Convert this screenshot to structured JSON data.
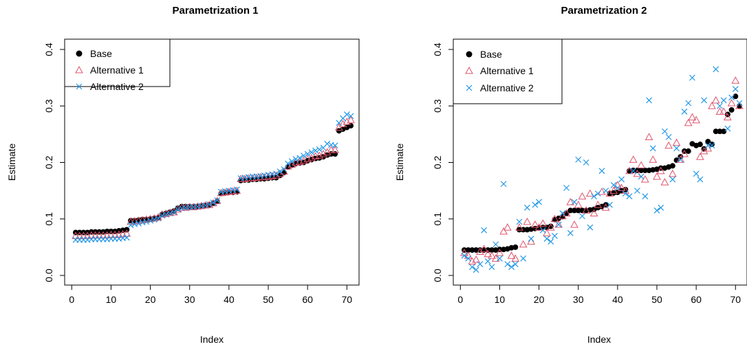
{
  "chart_data": [
    {
      "type": "scatter",
      "title": "Parametrization 1",
      "xlabel": "Index",
      "ylabel": "Estimate",
      "xlim": [
        1,
        71
      ],
      "ylim": [
        0.0,
        0.4
      ],
      "xticks": [
        "0",
        "10",
        "20",
        "30",
        "40",
        "50",
        "60",
        "70"
      ],
      "yticks": [
        "0.0",
        "0.1",
        "0.2",
        "0.3",
        "0.4"
      ],
      "legend": {
        "position": "top-left",
        "entries": [
          "Base",
          "Alternative 1",
          "Alternative 2"
        ]
      },
      "series": [
        {
          "name": "Base",
          "marker": "filled-circle",
          "color": "#000000",
          "x": [
            1,
            2,
            3,
            4,
            5,
            6,
            7,
            8,
            9,
            10,
            11,
            12,
            13,
            14,
            15,
            16,
            17,
            18,
            19,
            20,
            21,
            22,
            23,
            24,
            25,
            26,
            27,
            28,
            29,
            30,
            31,
            32,
            33,
            34,
            35,
            36,
            37,
            38,
            39,
            40,
            41,
            42,
            43,
            44,
            45,
            46,
            47,
            48,
            49,
            50,
            51,
            52,
            53,
            54,
            55,
            56,
            57,
            58,
            59,
            60,
            61,
            62,
            63,
            64,
            65,
            66,
            67,
            68,
            69,
            70,
            71
          ],
          "values": [
            0.076,
            0.076,
            0.076,
            0.076,
            0.077,
            0.077,
            0.077,
            0.077,
            0.078,
            0.078,
            0.078,
            0.079,
            0.08,
            0.081,
            0.097,
            0.097,
            0.098,
            0.099,
            0.099,
            0.1,
            0.101,
            0.102,
            0.108,
            0.11,
            0.112,
            0.114,
            0.119,
            0.122,
            0.122,
            0.122,
            0.122,
            0.122,
            0.123,
            0.124,
            0.125,
            0.128,
            0.131,
            0.145,
            0.146,
            0.147,
            0.147,
            0.148,
            0.168,
            0.169,
            0.169,
            0.17,
            0.17,
            0.171,
            0.171,
            0.172,
            0.173,
            0.173,
            0.177,
            0.182,
            0.192,
            0.195,
            0.198,
            0.199,
            0.2,
            0.203,
            0.205,
            0.207,
            0.208,
            0.21,
            0.213,
            0.215,
            0.215,
            0.256,
            0.259,
            0.262,
            0.265
          ]
        },
        {
          "name": "Alternative 1",
          "marker": "open-triangle",
          "color": "#DF536B",
          "x": [
            1,
            2,
            3,
            4,
            5,
            6,
            7,
            8,
            9,
            10,
            11,
            12,
            13,
            14,
            15,
            16,
            17,
            18,
            19,
            20,
            21,
            22,
            23,
            24,
            25,
            26,
            27,
            28,
            29,
            30,
            31,
            32,
            33,
            34,
            35,
            36,
            37,
            38,
            39,
            40,
            41,
            42,
            43,
            44,
            45,
            46,
            47,
            48,
            49,
            50,
            51,
            52,
            53,
            54,
            55,
            56,
            57,
            58,
            59,
            60,
            61,
            62,
            63,
            64,
            65,
            66,
            67,
            68,
            69,
            70,
            71
          ],
          "values": [
            0.07,
            0.07,
            0.07,
            0.07,
            0.071,
            0.071,
            0.071,
            0.071,
            0.071,
            0.072,
            0.072,
            0.072,
            0.073,
            0.074,
            0.095,
            0.096,
            0.097,
            0.098,
            0.099,
            0.1,
            0.101,
            0.103,
            0.108,
            0.109,
            0.111,
            0.112,
            0.117,
            0.12,
            0.12,
            0.121,
            0.121,
            0.122,
            0.123,
            0.124,
            0.125,
            0.128,
            0.132,
            0.146,
            0.147,
            0.148,
            0.149,
            0.15,
            0.171,
            0.171,
            0.172,
            0.172,
            0.173,
            0.174,
            0.174,
            0.175,
            0.176,
            0.177,
            0.18,
            0.184,
            0.193,
            0.196,
            0.2,
            0.201,
            0.203,
            0.206,
            0.208,
            0.211,
            0.212,
            0.215,
            0.218,
            0.222,
            0.222,
            0.262,
            0.268,
            0.272,
            0.275
          ]
        },
        {
          "name": "Alternative 2",
          "marker": "cross",
          "color": "#2297E6",
          "x": [
            1,
            2,
            3,
            4,
            5,
            6,
            7,
            8,
            9,
            10,
            11,
            12,
            13,
            14,
            15,
            16,
            17,
            18,
            19,
            20,
            21,
            22,
            23,
            24,
            25,
            26,
            27,
            28,
            29,
            30,
            31,
            32,
            33,
            34,
            35,
            36,
            37,
            38,
            39,
            40,
            41,
            42,
            43,
            44,
            45,
            46,
            47,
            48,
            49,
            50,
            51,
            52,
            53,
            54,
            55,
            56,
            57,
            58,
            59,
            60,
            61,
            62,
            63,
            64,
            65,
            66,
            67,
            68,
            69,
            70,
            71
          ],
          "values": [
            0.063,
            0.063,
            0.063,
            0.063,
            0.064,
            0.064,
            0.064,
            0.064,
            0.064,
            0.065,
            0.065,
            0.065,
            0.066,
            0.067,
            0.089,
            0.091,
            0.092,
            0.094,
            0.095,
            0.097,
            0.099,
            0.101,
            0.106,
            0.108,
            0.11,
            0.112,
            0.117,
            0.119,
            0.12,
            0.121,
            0.121,
            0.122,
            0.123,
            0.124,
            0.126,
            0.129,
            0.133,
            0.148,
            0.149,
            0.15,
            0.151,
            0.152,
            0.172,
            0.173,
            0.174,
            0.175,
            0.175,
            0.176,
            0.177,
            0.178,
            0.179,
            0.18,
            0.184,
            0.188,
            0.198,
            0.202,
            0.206,
            0.208,
            0.212,
            0.215,
            0.218,
            0.221,
            0.223,
            0.226,
            0.233,
            0.231,
            0.23,
            0.27,
            0.278,
            0.285,
            0.282
          ]
        }
      ]
    },
    {
      "type": "scatter",
      "title": "Parametrization 2",
      "xlabel": "Index",
      "ylabel": "Estimate",
      "xlim": [
        1,
        71
      ],
      "ylim": [
        0.0,
        0.4
      ],
      "xticks": [
        "0",
        "10",
        "20",
        "30",
        "40",
        "50",
        "60",
        "70"
      ],
      "yticks": [
        "0.0",
        "0.1",
        "0.2",
        "0.3",
        "0.4"
      ],
      "legend": {
        "position": "top-left",
        "entries": [
          "Base",
          "Alternative 1",
          "Alternative 2"
        ]
      },
      "series": [
        {
          "name": "Base",
          "marker": "filled-circle",
          "color": "#000000",
          "x": [
            1,
            2,
            3,
            4,
            5,
            6,
            7,
            8,
            9,
            10,
            11,
            12,
            13,
            14,
            15,
            16,
            17,
            18,
            19,
            20,
            21,
            22,
            23,
            24,
            25,
            26,
            27,
            28,
            29,
            30,
            31,
            32,
            33,
            34,
            35,
            36,
            37,
            38,
            39,
            40,
            41,
            42,
            43,
            44,
            45,
            46,
            47,
            48,
            49,
            50,
            51,
            52,
            53,
            54,
            55,
            56,
            57,
            58,
            59,
            60,
            61,
            62,
            63,
            64,
            65,
            66,
            67,
            68,
            69,
            70,
            71
          ],
          "values": [
            0.045,
            0.045,
            0.045,
            0.045,
            0.045,
            0.045,
            0.045,
            0.045,
            0.045,
            0.046,
            0.046,
            0.047,
            0.049,
            0.05,
            0.081,
            0.081,
            0.081,
            0.082,
            0.083,
            0.084,
            0.085,
            0.085,
            0.087,
            0.099,
            0.101,
            0.104,
            0.11,
            0.115,
            0.115,
            0.115,
            0.115,
            0.115,
            0.116,
            0.117,
            0.12,
            0.122,
            0.125,
            0.145,
            0.146,
            0.147,
            0.15,
            0.152,
            0.185,
            0.186,
            0.186,
            0.186,
            0.186,
            0.186,
            0.187,
            0.188,
            0.19,
            0.19,
            0.192,
            0.194,
            0.204,
            0.21,
            0.22,
            0.22,
            0.233,
            0.23,
            0.232,
            0.224,
            0.237,
            0.232,
            0.255,
            0.255,
            0.255,
            0.285,
            0.293,
            0.317,
            0.3
          ]
        },
        {
          "name": "Alternative 1",
          "marker": "open-triangle",
          "color": "#DF536B",
          "x": [
            1,
            2,
            3,
            4,
            5,
            6,
            7,
            8,
            9,
            10,
            11,
            12,
            13,
            14,
            15,
            16,
            17,
            18,
            19,
            20,
            21,
            22,
            23,
            24,
            25,
            26,
            27,
            28,
            29,
            30,
            31,
            32,
            33,
            34,
            35,
            36,
            37,
            38,
            39,
            40,
            41,
            42,
            43,
            44,
            45,
            46,
            47,
            48,
            49,
            50,
            51,
            52,
            53,
            54,
            55,
            56,
            57,
            58,
            59,
            60,
            61,
            62,
            63,
            64,
            65,
            66,
            67,
            68,
            69,
            70,
            71
          ],
          "values": [
            0.04,
            0.035,
            0.025,
            0.028,
            0.042,
            0.047,
            0.038,
            0.035,
            0.03,
            0.04,
            0.078,
            0.085,
            0.035,
            0.03,
            0.085,
            0.055,
            0.095,
            0.06,
            0.09,
            0.085,
            0.092,
            0.075,
            0.085,
            0.1,
            0.09,
            0.105,
            0.11,
            0.13,
            0.09,
            0.125,
            0.14,
            0.115,
            0.145,
            0.11,
            0.125,
            0.148,
            0.12,
            0.145,
            0.15,
            0.16,
            0.155,
            0.15,
            0.185,
            0.205,
            0.18,
            0.195,
            0.17,
            0.245,
            0.205,
            0.175,
            0.185,
            0.165,
            0.23,
            0.18,
            0.235,
            0.205,
            0.215,
            0.27,
            0.28,
            0.275,
            0.21,
            0.22,
            0.225,
            0.3,
            0.31,
            0.29,
            0.29,
            0.28,
            0.305,
            0.345,
            0.3
          ]
        },
        {
          "name": "Alternative 2",
          "marker": "cross",
          "color": "#2297E6",
          "x": [
            1,
            2,
            3,
            4,
            5,
            6,
            7,
            8,
            9,
            10,
            11,
            12,
            13,
            14,
            15,
            16,
            17,
            18,
            19,
            20,
            21,
            22,
            23,
            24,
            25,
            26,
            27,
            28,
            29,
            30,
            31,
            32,
            33,
            34,
            35,
            36,
            37,
            38,
            39,
            40,
            41,
            42,
            43,
            44,
            45,
            46,
            47,
            48,
            49,
            50,
            51,
            52,
            53,
            54,
            55,
            56,
            57,
            58,
            59,
            60,
            61,
            62,
            63,
            64,
            65,
            66,
            67,
            68,
            69,
            70,
            71
          ],
          "values": [
            0.035,
            0.03,
            0.015,
            0.01,
            0.02,
            0.08,
            0.025,
            0.015,
            0.055,
            0.03,
            0.162,
            0.02,
            0.015,
            0.02,
            0.095,
            0.03,
            0.12,
            0.065,
            0.125,
            0.13,
            0.08,
            0.065,
            0.06,
            0.07,
            0.09,
            0.11,
            0.155,
            0.075,
            0.13,
            0.205,
            0.105,
            0.2,
            0.085,
            0.14,
            0.145,
            0.185,
            0.15,
            0.125,
            0.16,
            0.155,
            0.17,
            0.145,
            0.14,
            0.185,
            0.15,
            0.175,
            0.14,
            0.31,
            0.225,
            0.115,
            0.12,
            0.255,
            0.245,
            0.17,
            0.225,
            0.205,
            0.29,
            0.305,
            0.35,
            0.18,
            0.17,
            0.31,
            0.23,
            0.23,
            0.365,
            0.3,
            0.31,
            0.26,
            0.315,
            0.33,
            0.305
          ]
        }
      ]
    }
  ]
}
